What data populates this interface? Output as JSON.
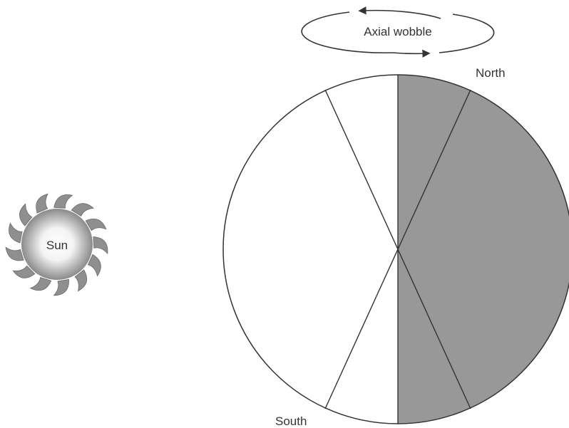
{
  "labels": {
    "wobble": "Axial wobble",
    "north": "North",
    "south": "South",
    "sun": "Sun"
  },
  "colors": {
    "night_side": "#9a9a9a",
    "line": "#333333",
    "sun_glow_center": "#ffffff",
    "sun_glow_edge": "#7a7a7a"
  },
  "icons": {
    "sun": "sun-icon",
    "wobble_arrows": "rotation-arrows-icon"
  }
}
